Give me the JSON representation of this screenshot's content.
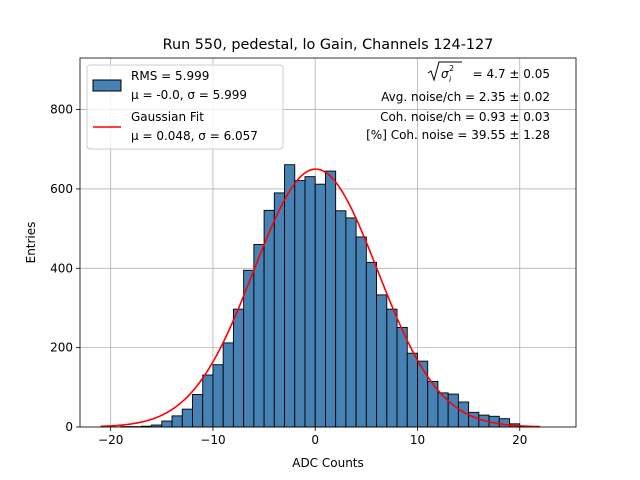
{
  "chart_data": {
    "type": "histogram",
    "title": "Run 550, pedestal, lo Gain, Channels 124-127",
    "xlabel": "ADC Counts",
    "ylabel": "Entries",
    "xlim": [
      -23.0,
      25.5
    ],
    "ylim": [
      0,
      930
    ],
    "xticks": [
      -20,
      -10,
      0,
      10,
      20
    ],
    "xtick_labels": [
      "−20",
      "−10",
      "0",
      "10",
      "20"
    ],
    "yticks": [
      0,
      200,
      400,
      600,
      800
    ],
    "grid": true,
    "bins": {
      "start": -19.0,
      "width": 1.0,
      "values": [
        1,
        1,
        2,
        5,
        15,
        28,
        45,
        82,
        131,
        157,
        212,
        297,
        395,
        460,
        546,
        590,
        661,
        621,
        631,
        612,
        645,
        545,
        527,
        479,
        415,
        333,
        297,
        251,
        186,
        166,
        115,
        86,
        83,
        63,
        37,
        30,
        27,
        21,
        8,
        2
      ],
      "fill": "#4682b4",
      "edge": "#000000"
    },
    "series": [
      {
        "name": "Gaussian Fit",
        "type": "line",
        "mu": 0.048,
        "sigma": 6.057,
        "amplitude": 650,
        "x_range": [
          -21,
          22
        ],
        "color": "#ff0000"
      }
    ],
    "legend": {
      "position": "top-left",
      "entries": [
        {
          "kind": "patch",
          "line1": "RMS = 5.999",
          "line2": "μ = -0.0, σ = 5.999"
        },
        {
          "kind": "line",
          "line1": "Gaussian Fit",
          "line2": "μ = 0.048, σ = 6.057"
        }
      ]
    },
    "annotations": {
      "sigma_sum": " = 4.7 ± 0.05",
      "sigma_sub": "i",
      "sigma_sup": "2",
      "sigma_symbol": "σ",
      "avg_noise": "Avg. noise/ch = 2.35 ± 0.02",
      "coh_noise": "Coh. noise/ch = 0.93 ± 0.03",
      "coh_pct": "[%] Coh. noise = 39.55 ± 1.28"
    }
  }
}
